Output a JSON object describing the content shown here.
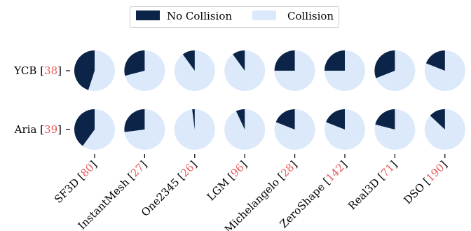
{
  "chart_data": {
    "type": "pie",
    "legend": {
      "placement": "top-center",
      "entries": [
        {
          "label": "No Collision",
          "color": "#0b2447"
        },
        {
          "label": "Collision",
          "color": "#dbe9fb"
        }
      ]
    },
    "rows": [
      {
        "label": "YCB",
        "ref": "38"
      },
      {
        "label": "Aria",
        "ref": "39"
      }
    ],
    "columns": [
      {
        "label": "SF3D",
        "ref": "80"
      },
      {
        "label": "InstantMesh",
        "ref": "27"
      },
      {
        "label": "One2345",
        "ref": "26"
      },
      {
        "label": "LGM",
        "ref": "96"
      },
      {
        "label": "Michelangelo",
        "ref": "28"
      },
      {
        "label": "ZeroShape",
        "ref": "142"
      },
      {
        "label": "Real3D",
        "ref": "71"
      },
      {
        "label": "DSO",
        "ref": "190"
      }
    ],
    "no_collision_fraction": [
      [
        0.45,
        0.29,
        0.1,
        0.1,
        0.25,
        0.25,
        0.31,
        0.19
      ],
      [
        0.4,
        0.27,
        0.02,
        0.07,
        0.19,
        0.19,
        0.21,
        0.13
      ]
    ],
    "ref_color": "#e8585a"
  }
}
